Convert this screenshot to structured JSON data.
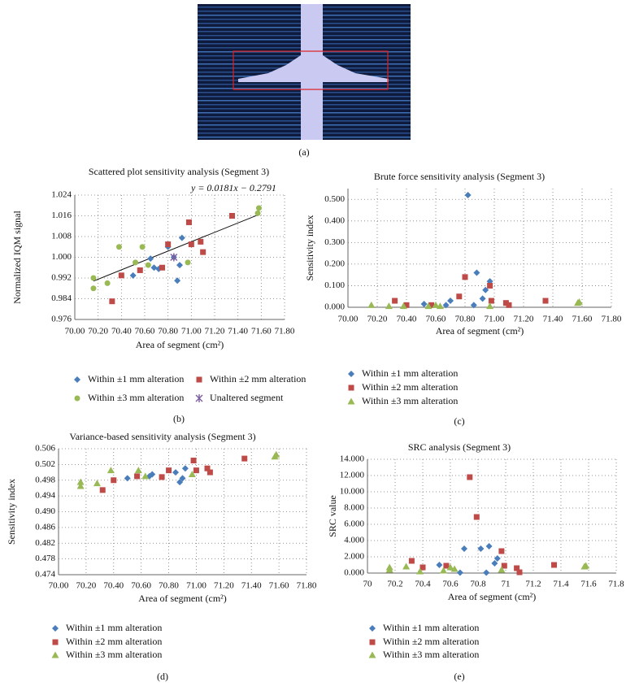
{
  "panel_a": {
    "label": "(a)"
  },
  "chart_data": [
    {
      "type": "scatter",
      "panel_label": "(b)",
      "title": "Scattered plot sensitivity analysis (Segment 3)",
      "annotation": "y = 0.0181x − 0.2791",
      "x_label": "Area of segment (cm²)",
      "y_label": "Normalized IQM signal",
      "xlim": [
        70,
        71.8
      ],
      "ylim": [
        0.976,
        1.024
      ],
      "grid": true,
      "legend": "bottom",
      "xticks": [
        {
          "value": 70,
          "label": "70.00"
        },
        {
          "value": 70.2,
          "label": "70.20"
        },
        {
          "value": 70.4,
          "label": "70.40"
        },
        {
          "value": 70.6,
          "label": "70.60"
        },
        {
          "value": 70.8,
          "label": "70.80"
        },
        {
          "value": 71,
          "label": "71.00"
        },
        {
          "value": 71.2,
          "label": "71.20"
        },
        {
          "value": 71.4,
          "label": "71.40"
        },
        {
          "value": 71.6,
          "label": "71.60"
        },
        {
          "value": 71.8,
          "label": "71.80"
        }
      ],
      "yticks": [
        0.976,
        0.984,
        0.992,
        {
          "value": 1,
          "label": "1.000"
        },
        1.008,
        1.016,
        1.024
      ],
      "trendline": {
        "x": [
          70.16,
          71.58
        ],
        "values": [
          0.9908,
          1.0165
        ]
      },
      "series": [
        {
          "name": "Within ±1 mm alteration",
          "color": "#4a7ebb",
          "marker": "diamond",
          "x": [
            70.5,
            70.65,
            70.68,
            70.72,
            70.85,
            70.88,
            70.9,
            70.92,
            70.8
          ],
          "values": [
            0.993,
            0.9995,
            0.996,
            0.9955,
            1.0,
            0.991,
            0.997,
            1.0075,
            1.004
          ]
        },
        {
          "name": "Within ±2 mm alteration",
          "color": "#be4b48",
          "marker": "square",
          "x": [
            70.32,
            70.4,
            70.56,
            70.75,
            70.8,
            70.98,
            71.0,
            71.08,
            71.1,
            71.35
          ],
          "values": [
            0.983,
            0.993,
            0.995,
            0.996,
            1.005,
            1.0135,
            1.005,
            1.006,
            1.002,
            1.016
          ]
        },
        {
          "name": "Within ±3 mm alteration",
          "color": "#98b954",
          "marker": "circle",
          "x": [
            70.16,
            70.16,
            70.28,
            70.38,
            70.52,
            70.58,
            70.63,
            70.97,
            71.57,
            71.58
          ],
          "values": [
            0.992,
            0.988,
            0.99,
            1.004,
            0.998,
            1.004,
            0.997,
            0.998,
            1.017,
            1.019
          ]
        },
        {
          "name": "Unaltered segment",
          "color": "#7e5ea0",
          "marker": "x",
          "x": [
            70.85
          ],
          "values": [
            1.0
          ]
        }
      ]
    },
    {
      "type": "scatter",
      "panel_label": "(c)",
      "title": "Brute force sensitivity analysis (Segment 3)",
      "x_label": "Area of segment (cm²)",
      "y_label": "Sensitivity index",
      "xlim": [
        70,
        71.8
      ],
      "ylim": [
        0,
        0.55
      ],
      "grid": true,
      "legend": "bottom",
      "xticks": [
        {
          "value": 70,
          "label": "70.00"
        },
        {
          "value": 70.2,
          "label": "70.20"
        },
        {
          "value": 70.4,
          "label": "70.40"
        },
        {
          "value": 70.6,
          "label": "70.60"
        },
        {
          "value": 70.8,
          "label": "70.80"
        },
        {
          "value": 71,
          "label": "71.00"
        },
        {
          "value": 71.2,
          "label": "71.20"
        },
        {
          "value": 71.4,
          "label": "71.40"
        },
        {
          "value": 71.6,
          "label": "71.60"
        },
        {
          "value": 71.8,
          "label": "71.80"
        }
      ],
      "yticks": [
        {
          "value": 0,
          "label": "0.000"
        },
        {
          "value": 0.1,
          "label": "0.100"
        },
        {
          "value": 0.2,
          "label": "0.200"
        },
        {
          "value": 0.3,
          "label": "0.300"
        },
        {
          "value": 0.4,
          "label": "0.400"
        },
        {
          "value": 0.5,
          "label": "0.500"
        }
      ],
      "series": [
        {
          "name": "Within ±1 mm alteration",
          "color": "#4a7ebb",
          "marker": "diamond",
          "x": [
            70.52,
            70.67,
            70.7,
            70.82,
            70.86,
            70.88,
            70.92,
            70.94,
            70.97
          ],
          "values": [
            0.015,
            0.01,
            0.03,
            0.52,
            0.01,
            0.16,
            0.04,
            0.08,
            0.12
          ]
        },
        {
          "name": "Within ±2 mm alteration",
          "color": "#be4b48",
          "marker": "square",
          "x": [
            70.32,
            70.4,
            70.57,
            70.76,
            70.8,
            70.97,
            70.98,
            71.08,
            71.1,
            71.35
          ],
          "values": [
            0.03,
            0.01,
            0.01,
            0.05,
            0.14,
            0.1,
            0.03,
            0.02,
            0.01,
            0.03
          ]
        },
        {
          "name": "Within ±3 mm alteration",
          "color": "#98b954",
          "marker": "triangle",
          "x": [
            70.16,
            70.28,
            70.38,
            70.55,
            70.6,
            70.63,
            70.97,
            71.57,
            71.58
          ],
          "values": [
            0.01,
            0.005,
            0.005,
            0.005,
            0.01,
            0.005,
            0.005,
            0.02,
            0.025
          ]
        }
      ]
    },
    {
      "type": "scatter",
      "panel_label": "(d)",
      "title": "Variance-based sensitivity analysis (Segment 3)",
      "x_label": "Area of segment (cm²)",
      "y_label": "Sensitivity index",
      "xlim": [
        70,
        71.8
      ],
      "ylim": [
        0.474,
        0.506
      ],
      "grid": true,
      "legend": "bottom",
      "xticks": [
        {
          "value": 70,
          "label": "70.00"
        },
        {
          "value": 70.2,
          "label": "70.20"
        },
        {
          "value": 70.4,
          "label": "70.40"
        },
        {
          "value": 70.6,
          "label": "70.60"
        },
        {
          "value": 70.8,
          "label": "70.80"
        },
        {
          "value": 71,
          "label": "71.00"
        },
        {
          "value": 71.2,
          "label": "71.20"
        },
        {
          "value": 71.4,
          "label": "71.40"
        },
        {
          "value": 71.6,
          "label": "71.60"
        },
        {
          "value": 71.8,
          "label": "71.80"
        }
      ],
      "yticks": [
        0.474,
        0.478,
        0.482,
        0.486,
        {
          "value": 0.49,
          "label": "0.490"
        },
        0.494,
        0.498,
        0.502,
        0.506
      ],
      "series": [
        {
          "name": "Within ±1 mm alteration",
          "color": "#4a7ebb",
          "marker": "diamond",
          "x": [
            70.5,
            70.66,
            70.68,
            70.85,
            70.88,
            70.9,
            70.92
          ],
          "values": [
            0.4985,
            0.499,
            0.4995,
            0.5,
            0.4975,
            0.4985,
            0.501
          ]
        },
        {
          "name": "Within ±2 mm alteration",
          "color": "#be4b48",
          "marker": "square",
          "x": [
            70.32,
            70.4,
            70.57,
            70.75,
            70.8,
            70.98,
            71.0,
            71.08,
            71.1,
            71.35
          ],
          "values": [
            0.4955,
            0.498,
            0.499,
            0.4988,
            0.5005,
            0.503,
            0.5005,
            0.501,
            0.5,
            0.5035
          ]
        },
        {
          "name": "Within ±3 mm alteration",
          "color": "#98b954",
          "marker": "triangle",
          "x": [
            70.16,
            70.16,
            70.28,
            70.38,
            70.58,
            70.63,
            70.97,
            71.57,
            71.58
          ],
          "values": [
            0.4975,
            0.4965,
            0.4972,
            0.5005,
            0.5005,
            0.499,
            0.4995,
            0.504,
            0.5045
          ]
        }
      ]
    },
    {
      "type": "scatter",
      "panel_label": "(e)",
      "title": "SRC analysis (Segment 3)",
      "x_label": "Area of segment (cm²)",
      "y_label": "SRC value",
      "xlim": [
        70,
        71.8
      ],
      "ylim": [
        0,
        14
      ],
      "grid": true,
      "legend": "bottom",
      "xticks": [
        70,
        70.2,
        70.4,
        70.6,
        70.8,
        71,
        71.2,
        71.4,
        71.6,
        71.8
      ],
      "yticks": [
        {
          "value": 0,
          "label": "0.000"
        },
        {
          "value": 2,
          "label": "2.000"
        },
        {
          "value": 4,
          "label": "4.000"
        },
        {
          "value": 6,
          "label": "6.000"
        },
        {
          "value": 8,
          "label": "8.000"
        },
        {
          "value": 10,
          "label": "10.000"
        },
        {
          "value": 12,
          "label": "12.000"
        },
        {
          "value": 14,
          "label": "14.000"
        }
      ],
      "series": [
        {
          "name": "Within ±1 mm alteration",
          "color": "#4a7ebb",
          "marker": "diamond",
          "x": [
            70.52,
            70.67,
            70.7,
            70.82,
            70.86,
            70.88,
            70.92,
            70.94
          ],
          "values": [
            1.0,
            0.05,
            3.0,
            3.0,
            0.05,
            3.3,
            1.2,
            1.8
          ]
        },
        {
          "name": "Within ±2 mm alteration",
          "color": "#be4b48",
          "marker": "square",
          "x": [
            70.32,
            70.4,
            70.57,
            70.74,
            70.79,
            70.97,
            70.99,
            71.08,
            71.1,
            71.35
          ],
          "values": [
            1.5,
            0.7,
            0.9,
            11.8,
            6.9,
            2.7,
            0.9,
            0.6,
            0.1,
            1.0
          ]
        },
        {
          "name": "Within ±3 mm alteration",
          "color": "#98b954",
          "marker": "triangle",
          "x": [
            70.16,
            70.16,
            70.28,
            70.38,
            70.55,
            70.6,
            70.63,
            70.97,
            71.57,
            71.58
          ],
          "values": [
            0.7,
            0.4,
            0.8,
            0.2,
            0.3,
            0.7,
            0.5,
            0.4,
            0.8,
            0.9
          ]
        }
      ]
    }
  ]
}
